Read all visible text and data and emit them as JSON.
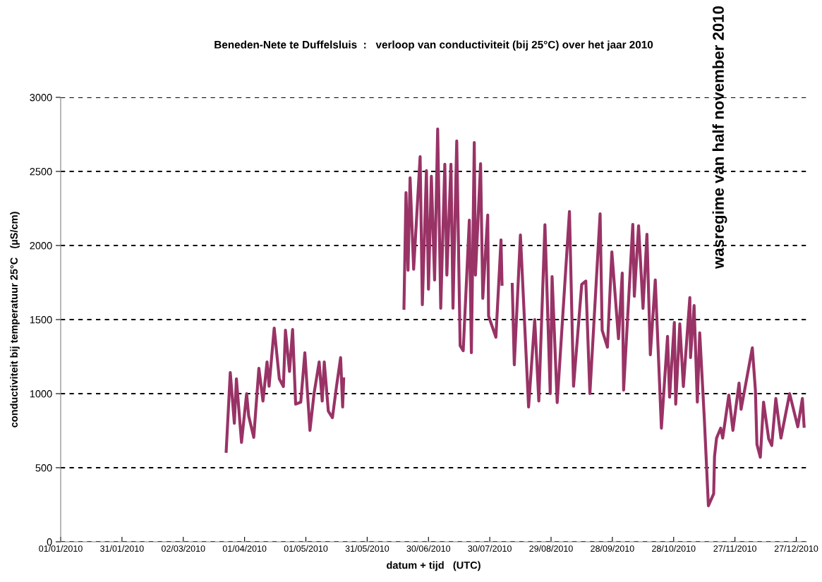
{
  "chart_data": {
    "type": "line",
    "title": "Beneden-Nete te Duffelsluis  :   verloop van conductiviteit (bij 25°C) over het jaar 2010",
    "xlabel": "datum + tijd   (UTC)",
    "ylabel": "conductiviteit bij temperatuur 25°C   (µS/cm)",
    "annotations": [
      "wasregime van half november 2010"
    ],
    "xlim": [
      "2010-01-01",
      "2011-01-01"
    ],
    "xticks": [
      {
        "value": "2010-01-01",
        "label": "01/01/2010"
      },
      {
        "value": "2010-01-31",
        "label": "31/01/2010"
      },
      {
        "value": "2010-03-02",
        "label": "02/03/2010"
      },
      {
        "value": "2010-04-01",
        "label": "01/04/2010"
      },
      {
        "value": "2010-05-01",
        "label": "01/05/2010"
      },
      {
        "value": "2010-05-31",
        "label": "31/05/2010"
      },
      {
        "value": "2010-06-30",
        "label": "30/06/2010"
      },
      {
        "value": "2010-07-30",
        "label": "30/07/2010"
      },
      {
        "value": "2010-08-29",
        "label": "29/08/2010"
      },
      {
        "value": "2010-09-28",
        "label": "28/09/2010"
      },
      {
        "value": "2010-10-28",
        "label": "28/10/2010"
      },
      {
        "value": "2010-11-27",
        "label": "27/11/2010"
      },
      {
        "value": "2010-12-27",
        "label": "27/12/2010"
      }
    ],
    "ylim": [
      0,
      3000
    ],
    "yticks": [
      0,
      500,
      1000,
      1500,
      2000,
      2500,
      3000
    ],
    "grid": "y",
    "legend": false,
    "marker": "none",
    "line_style": "solid",
    "series": [
      {
        "color": "#993366",
        "x": [
          "2010-03-23",
          "2010-03-25",
          "2010-03-27",
          "2010-03-28",
          "2010-03-30T12:00",
          "2010-04-02",
          "2010-04-03",
          "2010-04-05T12:00",
          "2010-04-08",
          "2010-04-10",
          "2010-04-12",
          "2010-04-13",
          "2010-04-15T12:00",
          "2010-04-18",
          "2010-04-20",
          "2010-04-21",
          "2010-04-23",
          "2010-04-24T12:00",
          "2010-04-26",
          "2010-04-28T12:00",
          "2010-04-30T12:00",
          "2010-05-03",
          "2010-05-05",
          "2010-05-07T12:00",
          "2010-05-09",
          "2010-05-10",
          "2010-05-12",
          "2010-05-14",
          "2010-05-16",
          "2010-05-18",
          "2010-05-19",
          "2010-05-19T12:00"
        ],
        "values": [
          610,
          1143,
          800,
          1100,
          671,
          1000,
          850,
          705,
          1171,
          950,
          1214,
          1050,
          1443,
          1100,
          1048,
          1428,
          1150,
          1433,
          929,
          943,
          1276,
          752,
          1000,
          1214,
          950,
          1214,
          881,
          838,
          1050,
          1243,
          910,
          1100
        ]
      },
      {
        "color": "#993366",
        "x": [
          "2010-06-18",
          "2010-06-19",
          "2010-06-20",
          "2010-06-21",
          "2010-06-22T18:00",
          "2010-06-25T22:00",
          "2010-06-27",
          "2010-06-29",
          "2010-06-30",
          "2010-07-01T10:00",
          "2010-07-03",
          "2010-07-04T12:00",
          "2010-07-06",
          "2010-07-08",
          "2010-07-09",
          "2010-07-11",
          "2010-07-12",
          "2010-07-13T20:00",
          "2010-07-15T12:00",
          "2010-07-17",
          "2010-07-20",
          "2010-07-21",
          "2010-07-22T10:00",
          "2010-07-23",
          "2010-07-25T12:00",
          "2010-07-26T14:00",
          "2010-07-29",
          "2010-07-29T10:00",
          "2010-08-02",
          "2010-08-04T12:00",
          "2010-08-05"
        ],
        "values": [
          1576,
          2357,
          1833,
          2457,
          1840,
          2600,
          1600,
          2505,
          1705,
          2467,
          1767,
          2786,
          1576,
          2548,
          1800,
          2548,
          1576,
          2705,
          1324,
          1290,
          2171,
          1276,
          2695,
          1800,
          2552,
          1643,
          2205,
          1524,
          1381,
          2038,
          1738
        ]
      },
      {
        "color": "#993366",
        "x": [
          "2010-08-10",
          "2010-08-11",
          "2010-08-14",
          "2010-08-18",
          "2010-08-21",
          "2010-08-23",
          "2010-08-26",
          "2010-08-28T14:00",
          "2010-08-29T12:00",
          "2010-09-01",
          "2010-09-07",
          "2010-09-09",
          "2010-09-13",
          "2010-09-15",
          "2010-09-17",
          "2010-09-22",
          "2010-09-23",
          "2010-09-25T14:00",
          "2010-09-27T18:00",
          "2010-10-01",
          "2010-10-02T20:00",
          "2010-10-03T12:00",
          "2010-10-08",
          "2010-10-08T18:00",
          "2010-10-10T20:00",
          "2010-10-13",
          "2010-10-14T22:00",
          "2010-10-16T14:00",
          "2010-10-19",
          "2010-10-22",
          "2010-10-25",
          "2010-10-26",
          "2010-10-28T08:00",
          "2010-10-29",
          "2010-10-31",
          "2010-11-01T18:00",
          "2010-11-04T22:00",
          "2010-11-05T06:00",
          "2010-11-07",
          "2010-11-08T14:00",
          "2010-11-09T18:00",
          "2010-11-12",
          "2010-11-14",
          "2010-11-16T14:00",
          "2010-11-17",
          "2010-11-18",
          "2010-11-20",
          "2010-11-21",
          "2010-11-24",
          "2010-11-26",
          "2010-11-29",
          "2010-11-30",
          "2010-12-05T12:00",
          "2010-12-07",
          "2010-12-07T18:00",
          "2010-12-09T10:00",
          "2010-12-11",
          "2010-12-13T12:00",
          "2010-12-15",
          "2010-12-17",
          "2010-12-19T12:00",
          "2010-12-23T18:00",
          "2010-12-27T18:00",
          "2010-12-30",
          "2010-12-30T20:00"
        ],
        "values": [
          1738,
          1195,
          2071,
          910,
          1500,
          950,
          2140,
          1000,
          1790,
          940,
          2229,
          1050,
          1738,
          1760,
          1000,
          2214,
          1428,
          1314,
          1957,
          1371,
          1814,
          1024,
          2143,
          1657,
          2133,
          1576,
          2076,
          1262,
          1767,
          767,
          1386,
          976,
          1481,
          929,
          1471,
          1048,
          1648,
          1243,
          1595,
          943,
          1410,
          833,
          243,
          324,
          576,
          700,
          767,
          700,
          990,
          752,
          1071,
          895,
          1309,
          1024,
          657,
          571,
          943,
          695,
          650,
          967,
          700,
          1000,
          776,
          967,
          780
        ]
      }
    ]
  }
}
